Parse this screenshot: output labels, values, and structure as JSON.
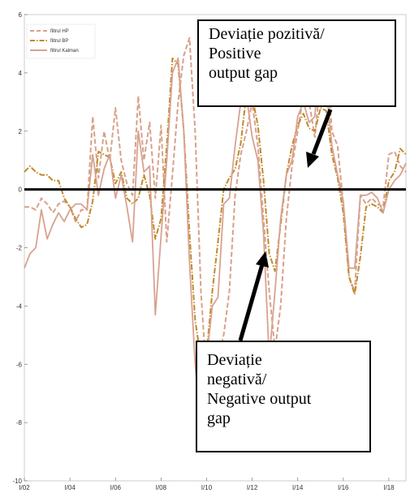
{
  "chart_data": {
    "type": "line",
    "x": [
      "I/02",
      "II/02",
      "III/02",
      "IV/02",
      "I/03",
      "II/03",
      "III/03",
      "IV/03",
      "I/04",
      "II/04",
      "III/04",
      "IV/04",
      "I/05",
      "II/05",
      "III/05",
      "IV/05",
      "I/06",
      "II/06",
      "III/06",
      "IV/06",
      "I/07",
      "II/07",
      "III/07",
      "IV/07",
      "I/08",
      "II/08",
      "III/08",
      "IV/08",
      "I/09",
      "II/09",
      "III/09",
      "IV/09",
      "I/10",
      "II/10",
      "III/10",
      "IV/10",
      "I/11",
      "II/11",
      "III/11",
      "IV/11",
      "I/12",
      "II/12",
      "III/12",
      "IV/12",
      "I/13",
      "II/13",
      "III/13",
      "IV/13",
      "I/14",
      "II/14",
      "III/14",
      "IV/14",
      "I/15",
      "II/15",
      "III/15",
      "IV/15",
      "I/16",
      "II/16",
      "III/16",
      "IV/16",
      "I/17",
      "II/17",
      "III/17",
      "IV/17",
      "I/18",
      "II/18",
      "III/18",
      "IV/18"
    ],
    "x_tick_labels": [
      "I/02",
      "I/04",
      "I/06",
      "I/08",
      "I/10",
      "I/12",
      "I/14",
      "I/16",
      "I/18"
    ],
    "y_ticks": [
      -10,
      -8,
      -6,
      -4,
      -2,
      0,
      2,
      4,
      6
    ],
    "ylim": [
      -10,
      6
    ],
    "series": [
      {
        "name": "filtrul HP",
        "color": "#d9a08a",
        "style": "dashed",
        "values": [
          -0.6,
          -0.6,
          -0.7,
          -0.3,
          -0.5,
          -0.8,
          -0.5,
          -0.4,
          -0.6,
          -1.1,
          -0.7,
          -0.7,
          2.5,
          0.4,
          2.0,
          1.0,
          2.8,
          1.0,
          0.2,
          -0.2,
          3.2,
          1.0,
          2.3,
          -0.3,
          2.2,
          -1.8,
          0.5,
          3.0,
          4.6,
          5.2,
          2.0,
          -3.5,
          -6.5,
          -6.8,
          -5.8,
          -5.0,
          -3.5,
          -0.2,
          1.2,
          2.0,
          3.0,
          1.5,
          -1.0,
          -3.5,
          -5.5,
          -4.0,
          -1.0,
          0.8,
          2.0,
          3.2,
          3.0,
          1.8,
          3.8,
          4.8,
          2.0,
          1.5,
          -0.5,
          -3.0,
          -3.5,
          -0.2,
          -0.5,
          -0.3,
          -0.5,
          -0.6,
          1.2,
          1.3,
          0.8,
          0.6
        ]
      },
      {
        "name": "filtrul BP",
        "color": "#c08a2c",
        "style": "dashdot",
        "values": [
          0.6,
          0.8,
          0.6,
          0.5,
          0.5,
          0.3,
          0.3,
          -0.3,
          -0.6,
          -1.0,
          -1.3,
          -1.2,
          -0.4,
          1.3,
          1.2,
          1.1,
          0.2,
          0.6,
          -0.3,
          -0.5,
          -0.3,
          0.5,
          -0.2,
          -1.7,
          -1.0,
          1.5,
          4.5,
          4.3,
          2.0,
          -1.5,
          -4.5,
          -5.8,
          -5.6,
          -3.5,
          -1.8,
          0.0,
          0.4,
          0.7,
          1.6,
          3.3,
          3.2,
          2.2,
          0.3,
          -2.2,
          -2.8,
          -1.2,
          0.5,
          1.5,
          2.2,
          2.6,
          2.1,
          2.0,
          2.8,
          2.7,
          1.2,
          0.4,
          -0.8,
          -3.0,
          -3.6,
          -2.3,
          -0.6,
          -0.5,
          -0.6,
          -0.8,
          0.3,
          0.6,
          1.4,
          1.2
        ]
      },
      {
        "name": "filtrul Kalman",
        "color": "#d8a290",
        "style": "solid",
        "values": [
          -2.7,
          -2.2,
          -2.0,
          -0.7,
          -1.7,
          -1.2,
          -0.8,
          -1.1,
          -0.7,
          -0.5,
          -0.5,
          -0.7,
          1.2,
          -0.2,
          0.7,
          1.2,
          -0.3,
          0.5,
          -0.6,
          -1.8,
          2.0,
          0.6,
          0.8,
          -4.3,
          -1.6,
          1.0,
          4.0,
          4.5,
          2.0,
          -2.5,
          -6.0,
          -8.4,
          -5.8,
          -4.0,
          -3.7,
          -0.5,
          -0.3,
          1.5,
          3.0,
          3.2,
          1.8,
          1.0,
          -1.5,
          -5.8,
          -3.5,
          -1.0,
          0.5,
          1.0,
          2.5,
          3.0,
          2.3,
          2.5,
          4.9,
          3.5,
          1.5,
          0.5,
          -0.4,
          -2.7,
          -2.7,
          -0.2,
          -0.2,
          -0.1,
          -0.3,
          -0.8,
          0.0,
          0.3,
          0.5,
          0.9
        ]
      }
    ],
    "legend_position": "top-left",
    "grid": false,
    "zero_line": {
      "y": 0,
      "color": "#000000"
    },
    "annotations": [
      {
        "key": "positive",
        "lines": [
          "Deviație pozitivă/",
          "Positive",
          "output gap"
        ],
        "arrow_target": {
          "x": "I/15",
          "y": 1
        }
      },
      {
        "key": "negative",
        "lines": [
          "Deviație",
          "negativă/",
          "Negative output",
          "gap"
        ],
        "arrow_target": {
          "x": "III/12",
          "y": -2.4
        }
      }
    ]
  },
  "legend": {
    "hp": "filtrul HP",
    "bp": "filtrul BP",
    "kalman": "filtrul Kalman"
  },
  "callouts": {
    "positive": [
      "Deviație pozitivă/",
      "Positive",
      "output gap"
    ],
    "negative": [
      "Deviație",
      "negativă/",
      "Negative output",
      "gap"
    ]
  }
}
